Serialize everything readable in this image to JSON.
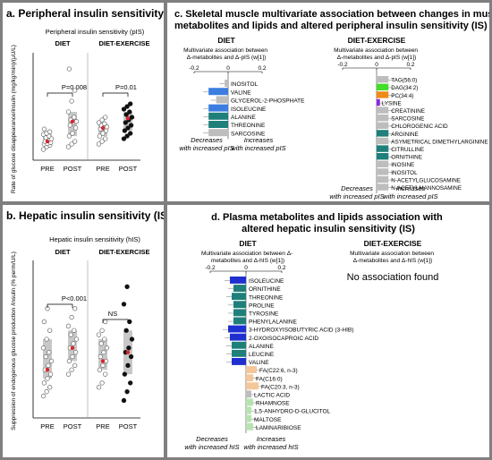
{
  "panel_a": {
    "title": "a. Peripheral insulin sensitivity (IS)",
    "subtitle": "Peripheral insulin sensitivity (pIS)",
    "ylabel": "Rate of glucose disappearance/insulin (mg/kg/min)/(µU/L)",
    "groups": [
      {
        "name": "DIET",
        "pvalue": "P=0.008",
        "ticks": [
          "PRE",
          "POST"
        ]
      },
      {
        "name": "DIET-EXERCISE",
        "pvalue": "P=0.01",
        "ticks": [
          "PRE",
          "POST"
        ]
      }
    ]
  },
  "panel_b": {
    "title": "b. Hepatic insulin sensitivity (IS)",
    "subtitle": "Hepatic insulin sensitivity (hIS)",
    "ylabel": "Suppression of endogenous glucose production /insulin (% perm/U/L)",
    "groups": [
      {
        "name": "DIET",
        "pvalue": "P<0.001",
        "ticks": [
          "PRE",
          "POST"
        ]
      },
      {
        "name": "DIET-EXERCISE",
        "pvalue": "NS",
        "ticks": [
          "PRE",
          "POST"
        ]
      }
    ]
  },
  "panel_c": {
    "title": "c. Skeletal muscle multivariate association between changes in muscle metabolites and lipids and altered peripheral insulin sensitivity (IS)",
    "diet": {
      "heading": "DIET",
      "desc": "Multivariate association between Δ-metabolites and Δ-pIS (w[1])",
      "note_left": "Decreases with increased pIS",
      "note_right": "Increases with increased pIS"
    },
    "exercise": {
      "heading": "DIET-EXERCISE",
      "desc": "Multivariate association between Δ-metabolites and Δ-pIS (w[1])",
      "note_left": "Decreases with increased pIS",
      "note_right": "Increases with increased pIS"
    }
  },
  "panel_d": {
    "title": "d. Plasma metabolites and lipids association with altered hepatic insulin sensitivity (IS)",
    "diet": {
      "heading": "DIET",
      "desc": "Multivariate association between Δ-metabolites and Δ-hIS (w[1])",
      "note_left": "Decreases with increased hIS",
      "note_right": "Increases with increased hIS"
    },
    "exercise": {
      "heading": "DIET-EXERCISE",
      "desc": "Multivariate association between Δ-metabolites and Δ-hIS (w[1])",
      "none": "No association found"
    }
  },
  "colors": {
    "frame": "#7f7f7f",
    "blue": "#3c7ee0",
    "teal": "#1f7f7a",
    "navy": "#1f2fd0",
    "peach": "#f3c79a",
    "light_green": "#b6e3b0",
    "grey": "#bdbdbd",
    "bright_green": "#44dd2a",
    "orange": "#f08a16",
    "purple": "#8a2be2",
    "red": "#d9242b"
  },
  "chart_data": [
    {
      "type": "scatter",
      "panel": "a",
      "ylim": [
        0,
        0.2
      ],
      "series": [
        {
          "group": "DIET",
          "time": "PRE",
          "values": [
            0.02,
            0.025,
            0.028,
            0.03,
            0.031,
            0.033,
            0.035,
            0.037,
            0.04,
            0.042,
            0.045,
            0.048,
            0.05,
            0.053,
            0.058
          ],
          "mean": 0.035
        },
        {
          "group": "DIET",
          "time": "POST",
          "values": [
            0.025,
            0.03,
            0.035,
            0.045,
            0.05,
            0.06,
            0.065,
            0.07,
            0.072,
            0.075,
            0.08,
            0.09,
            0.11,
            0.13,
            0.17
          ],
          "mean": 0.072
        },
        {
          "group": "DIET-EXERCISE",
          "time": "PRE",
          "values": [
            0.03,
            0.035,
            0.04,
            0.045,
            0.05,
            0.055,
            0.058,
            0.06,
            0.062,
            0.065,
            0.068,
            0.07,
            0.075,
            0.08
          ],
          "mean": 0.06
        },
        {
          "group": "DIET-EXERCISE",
          "time": "POST",
          "values": [
            0.04,
            0.045,
            0.05,
            0.055,
            0.06,
            0.065,
            0.07,
            0.075,
            0.08,
            0.085,
            0.09,
            0.095,
            0.1,
            0.105
          ],
          "mean": 0.078
        }
      ]
    },
    {
      "type": "scatter",
      "panel": "b",
      "ylim": [
        0,
        3.6
      ],
      "series": [
        {
          "group": "DIET",
          "time": "PRE",
          "values": [
            0.5,
            0.6,
            0.7,
            0.8,
            0.9,
            1.0,
            1.1,
            1.2,
            1.3,
            1.4,
            1.5,
            1.6,
            1.8,
            2.0,
            2.2,
            2.5
          ],
          "mean": 1.1
        },
        {
          "group": "DIET",
          "time": "POST",
          "values": [
            1.0,
            1.1,
            1.2,
            1.3,
            1.4,
            1.5,
            1.6,
            1.7,
            1.8,
            1.9,
            2.0,
            2.1,
            2.3,
            2.5
          ],
          "mean": 1.6
        },
        {
          "group": "DIET-EXERCISE",
          "time": "PRE",
          "values": [
            0.7,
            0.8,
            1.0,
            1.1,
            1.2,
            1.3,
            1.4,
            1.5,
            1.6,
            1.7,
            1.8,
            1.9,
            2.0,
            2.2
          ],
          "mean": 1.3
        },
        {
          "group": "DIET-EXERCISE",
          "time": "POST",
          "values": [
            0.4,
            0.6,
            0.8,
            1.0,
            1.2,
            1.4,
            1.5,
            1.6,
            1.8,
            2.0,
            2.2,
            2.6,
            3.0
          ],
          "mean": 1.5
        }
      ]
    },
    {
      "type": "bar",
      "panel": "c-diet",
      "xlim": [
        -0.2,
        0.2
      ],
      "ticks": [
        "-0.2",
        "0",
        "0.2"
      ],
      "categories": [
        "INOSITOL",
        "VALINE",
        "GLYCEROL-2-PHOSPHATE",
        "ISOLEUCINE",
        "ALANINE",
        "THREONINE",
        "SARCOSINE"
      ],
      "values": [
        -0.02,
        -0.115,
        -0.07,
        -0.115,
        -0.115,
        -0.115,
        -0.115
      ],
      "colors": [
        "grey",
        "blue",
        "grey",
        "blue",
        "teal",
        "teal",
        "grey"
      ]
    },
    {
      "type": "bar",
      "panel": "c-exercise",
      "xlim": [
        -0.2,
        0.2
      ],
      "ticks": [
        "-0.2",
        "0",
        "0.2"
      ],
      "categories": [
        "TAG(56:0)",
        "DAG(34:2)",
        "PC(34:4)",
        "LYSINE",
        "CREATININE",
        "SARCOSINE",
        "CHLOROGENIC ACID",
        "ARGININE",
        "ASYMETRICAL DIMETHYLARGININE",
        "CITRULLINE",
        "ORNITHINE",
        "INOSINE",
        "INOSITOL",
        "N-ACETYLGLUCOSAMINE",
        "N-ACETYLMANNOSAMINE"
      ],
      "values": [
        0.07,
        0.07,
        0.07,
        0.02,
        0.07,
        0.07,
        0.07,
        0.07,
        0.07,
        0.07,
        0.07,
        0.07,
        0.07,
        0.07,
        0.07
      ],
      "colors": [
        "grey",
        "bright_green",
        "orange",
        "purple",
        "grey",
        "grey",
        "grey",
        "teal",
        "grey",
        "teal",
        "teal",
        "grey",
        "grey",
        "grey",
        "grey"
      ]
    },
    {
      "type": "bar",
      "panel": "d-diet",
      "xlim": [
        -0.2,
        0.2
      ],
      "ticks": [
        "-0.2",
        "0",
        "0.2"
      ],
      "categories": [
        "ISOLEUCINE",
        "ORNITHINE",
        "THREONINE",
        "PROLINE",
        "TYROSINE",
        "PHENYLALANINE",
        "3-HYDROXYISOBUTYRIC ACID (3-HIB)",
        "2-OXOISOCAPROIC ACID",
        "ALANINE",
        "LEUCINE",
        "VALINE",
        "FA(C22:6, n-3)",
        "FA(C16:0)",
        "FA(C20:3, n-3)",
        "LACTIC ACID",
        "RHAMNOSE",
        "1,5-ANHYDRO-D-GLUCITOL",
        "MALTOSE",
        "LAMINARIBIOSE"
      ],
      "values": [
        -0.09,
        -0.07,
        -0.08,
        -0.07,
        -0.07,
        -0.07,
        -0.1,
        -0.09,
        -0.08,
        -0.08,
        -0.08,
        0.06,
        0.04,
        0.07,
        0.03,
        0.04,
        0.03,
        0.03,
        0.04
      ],
      "colors": [
        "navy",
        "teal",
        "teal",
        "teal",
        "teal",
        "teal",
        "navy",
        "navy",
        "teal",
        "teal",
        "navy",
        "peach",
        "peach",
        "peach",
        "grey",
        "light_green",
        "light_green",
        "light_green",
        "light_green"
      ]
    }
  ]
}
